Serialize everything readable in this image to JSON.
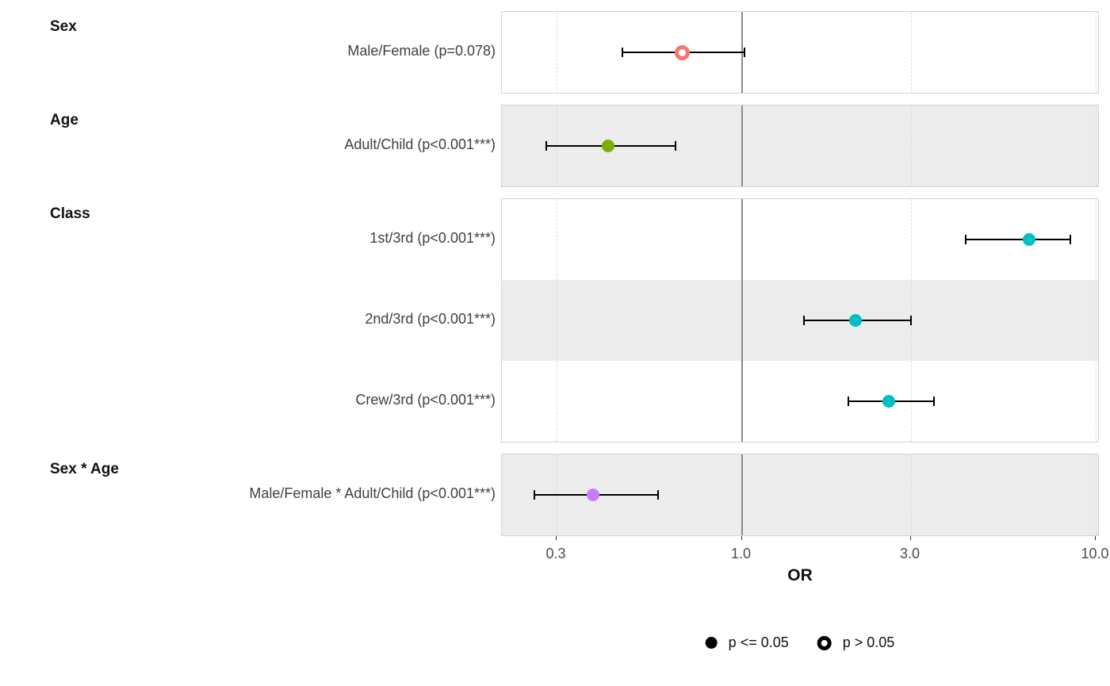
{
  "chart_data": {
    "type": "scatter",
    "subtype": "forest-plot-odds-ratios",
    "title": "",
    "xlabel": "OR",
    "x_scale": "log10",
    "xlim": [
      0.21,
      10.4
    ],
    "x_axis": {
      "ticks": [
        0.3,
        1.0,
        3.0,
        10.0
      ],
      "tick_labels": [
        "0.3",
        "1.0",
        "3.0",
        "10.0"
      ],
      "reference_line": 1.0,
      "dashed_gridlines": [
        0.3,
        3.0,
        10.0
      ]
    },
    "colors": {
      "shaded_row": "#ECECEC",
      "panel_border": "#D5D5D5",
      "gridline_dashed": "#DCDCDC",
      "reference_line": "#8A8A8A",
      "error_bar": "#000000"
    },
    "legend": {
      "position": "bottom-center",
      "items": [
        {
          "label": "p <= 0.05",
          "marker": "filled-circle"
        },
        {
          "label": "p > 0.05",
          "marker": "hollow-circle"
        }
      ]
    },
    "groups": [
      {
        "facet": "Sex",
        "rows": [
          {
            "label": "Male/Female (p=0.078)",
            "or": 0.68,
            "ci_low": 0.46,
            "ci_high": 1.02,
            "color": "#F8766D",
            "p_significant": false
          }
        ]
      },
      {
        "facet": "Age",
        "rows": [
          {
            "label": "Adult/Child (p<0.001***)",
            "or": 0.42,
            "ci_low": 0.28,
            "ci_high": 0.65,
            "color": "#7CAE00",
            "p_significant": true
          }
        ]
      },
      {
        "facet": "Class",
        "rows": [
          {
            "label": "1st/3rd (p<0.001***)",
            "or": 6.5,
            "ci_low": 4.3,
            "ci_high": 8.5,
            "color": "#00BFC4",
            "p_significant": true
          },
          {
            "label": "2nd/3rd (p<0.001***)",
            "or": 2.1,
            "ci_low": 1.5,
            "ci_high": 3.0,
            "color": "#00BFC4",
            "p_significant": true
          },
          {
            "label": "Crew/3rd (p<0.001***)",
            "or": 2.6,
            "ci_low": 2.0,
            "ci_high": 3.5,
            "color": "#00BFC4",
            "p_significant": true
          }
        ]
      },
      {
        "facet": "Sex * Age",
        "rows": [
          {
            "label": "Male/Female * Adult/Child (p<0.001***)",
            "or": 0.38,
            "ci_low": 0.26,
            "ci_high": 0.58,
            "color": "#C77CFF",
            "p_significant": true
          }
        ]
      }
    ]
  }
}
